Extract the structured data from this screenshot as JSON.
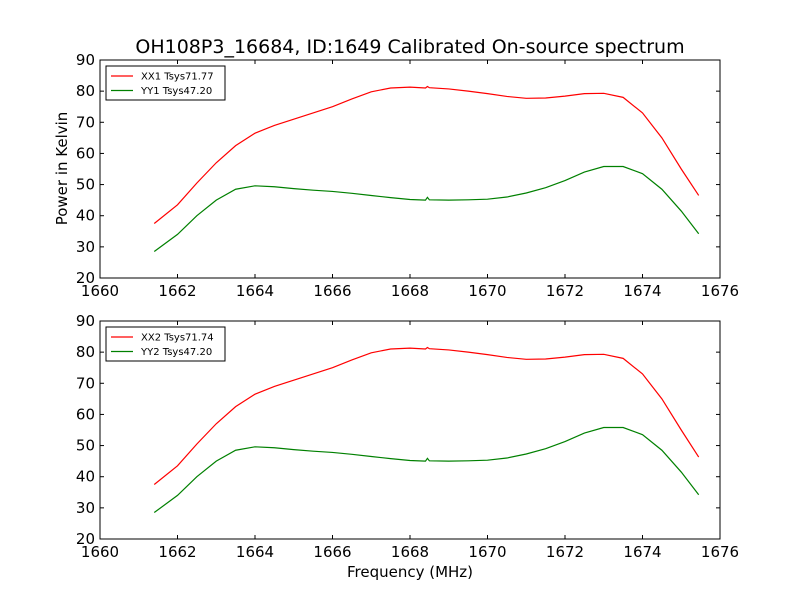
{
  "chart_data": [
    {
      "type": "line",
      "title": "OH108P3_16684, ID:1649 Calibrated On-source spectrum",
      "xlabel": "",
      "ylabel": "Power in Kelvin",
      "xlim": [
        1660,
        1676
      ],
      "ylim": [
        20,
        90
      ],
      "xticks": [
        1660,
        1662,
        1664,
        1666,
        1668,
        1670,
        1672,
        1674,
        1676
      ],
      "yticks": [
        20,
        30,
        40,
        50,
        60,
        70,
        80,
        90
      ],
      "grid": false,
      "legend_position": "top-left",
      "series": [
        {
          "name": "XX1 Tsys71.77",
          "color": "#ff0000",
          "x": [
            1661.4,
            1662.0,
            1662.5,
            1663.0,
            1663.5,
            1664.0,
            1664.5,
            1665.0,
            1665.5,
            1666.0,
            1666.5,
            1667.0,
            1667.5,
            1668.0,
            1668.4,
            1668.45,
            1668.5,
            1669.0,
            1669.5,
            1670.0,
            1670.5,
            1671.0,
            1671.5,
            1672.0,
            1672.5,
            1673.0,
            1673.5,
            1674.0,
            1674.5,
            1675.0,
            1675.45
          ],
          "y": [
            37.5,
            43.5,
            50.5,
            57.0,
            62.5,
            66.5,
            69.0,
            71.0,
            73.0,
            75.0,
            77.5,
            79.8,
            81.0,
            81.3,
            81.0,
            81.5,
            81.1,
            80.7,
            80.0,
            79.2,
            78.3,
            77.7,
            77.8,
            78.4,
            79.2,
            79.3,
            78.0,
            73.0,
            65.0,
            55.0,
            46.5
          ]
        },
        {
          "name": "YY1 Tsys47.20",
          "color": "#008000",
          "x": [
            1661.4,
            1662.0,
            1662.5,
            1663.0,
            1663.5,
            1664.0,
            1664.5,
            1665.0,
            1665.5,
            1666.0,
            1666.5,
            1667.0,
            1667.5,
            1668.0,
            1668.4,
            1668.45,
            1668.5,
            1669.0,
            1669.5,
            1670.0,
            1670.5,
            1671.0,
            1671.5,
            1672.0,
            1672.5,
            1673.0,
            1673.5,
            1674.0,
            1674.5,
            1675.0,
            1675.45
          ],
          "y": [
            28.5,
            34.0,
            40.0,
            45.0,
            48.5,
            49.6,
            49.3,
            48.7,
            48.2,
            47.8,
            47.2,
            46.5,
            45.8,
            45.2,
            45.0,
            45.9,
            45.1,
            45.0,
            45.1,
            45.3,
            46.0,
            47.3,
            49.0,
            51.3,
            54.0,
            55.8,
            55.8,
            53.5,
            48.5,
            41.5,
            34.2
          ]
        }
      ]
    },
    {
      "type": "line",
      "title": "",
      "xlabel": "Frequency (MHz)",
      "ylabel": "",
      "xlim": [
        1660,
        1676
      ],
      "ylim": [
        20,
        90
      ],
      "xticks": [
        1660,
        1662,
        1664,
        1666,
        1668,
        1670,
        1672,
        1674,
        1676
      ],
      "yticks": [
        20,
        30,
        40,
        50,
        60,
        70,
        80,
        90
      ],
      "grid": false,
      "legend_position": "top-left",
      "series": [
        {
          "name": "XX2 Tsys71.74",
          "color": "#ff0000",
          "x": [
            1661.4,
            1662.0,
            1662.5,
            1663.0,
            1663.5,
            1664.0,
            1664.5,
            1665.0,
            1665.5,
            1666.0,
            1666.5,
            1667.0,
            1667.5,
            1668.0,
            1668.4,
            1668.45,
            1668.5,
            1669.0,
            1669.5,
            1670.0,
            1670.5,
            1671.0,
            1671.5,
            1672.0,
            1672.5,
            1673.0,
            1673.5,
            1674.0,
            1674.5,
            1675.0,
            1675.45
          ],
          "y": [
            37.5,
            43.5,
            50.5,
            57.0,
            62.5,
            66.5,
            69.0,
            71.0,
            73.0,
            75.0,
            77.5,
            79.8,
            81.0,
            81.3,
            81.0,
            81.5,
            81.1,
            80.7,
            80.0,
            79.2,
            78.3,
            77.7,
            77.8,
            78.4,
            79.2,
            79.3,
            78.0,
            73.0,
            65.0,
            55.0,
            46.3
          ]
        },
        {
          "name": "YY2 Tsys47.20",
          "color": "#008000",
          "x": [
            1661.4,
            1662.0,
            1662.5,
            1663.0,
            1663.5,
            1664.0,
            1664.5,
            1665.0,
            1665.5,
            1666.0,
            1666.5,
            1667.0,
            1667.5,
            1668.0,
            1668.4,
            1668.45,
            1668.5,
            1669.0,
            1669.5,
            1670.0,
            1670.5,
            1671.0,
            1671.5,
            1672.0,
            1672.5,
            1673.0,
            1673.5,
            1674.0,
            1674.5,
            1675.0,
            1675.45
          ],
          "y": [
            28.5,
            34.0,
            40.0,
            45.0,
            48.5,
            49.6,
            49.3,
            48.7,
            48.2,
            47.8,
            47.2,
            46.5,
            45.8,
            45.2,
            45.0,
            45.9,
            45.1,
            45.0,
            45.1,
            45.3,
            46.0,
            47.3,
            49.0,
            51.3,
            54.0,
            55.8,
            55.8,
            53.5,
            48.5,
            41.5,
            34.2
          ]
        }
      ]
    }
  ]
}
